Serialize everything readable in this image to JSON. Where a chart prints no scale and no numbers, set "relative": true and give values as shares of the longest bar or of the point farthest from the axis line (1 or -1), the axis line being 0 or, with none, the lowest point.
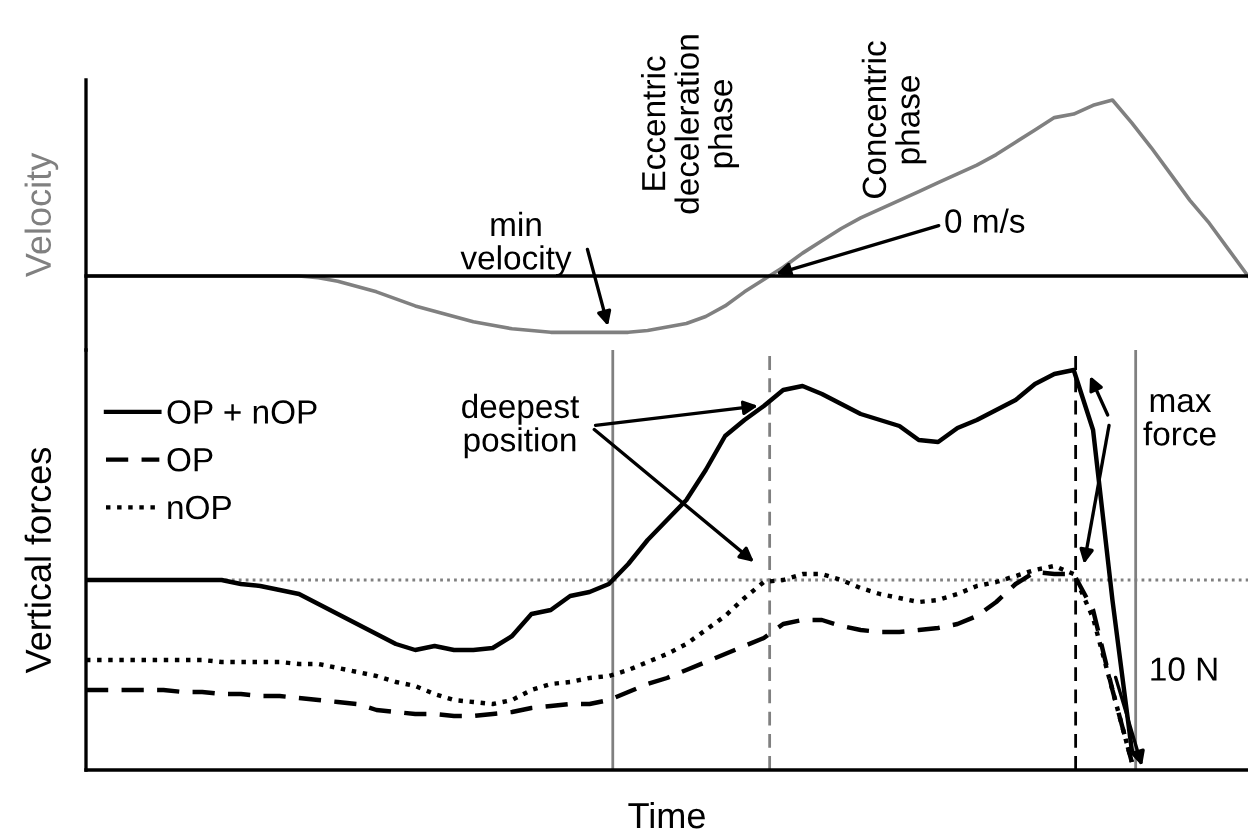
{
  "chart_data": [
    {
      "type": "line",
      "ylabel": "Velocity",
      "relative": true,
      "categories": [
        null,
        null,
        null,
        null,
        null,
        null,
        null,
        null,
        null,
        null,
        null,
        null,
        null,
        null,
        null,
        null,
        null,
        null,
        null,
        null,
        null,
        null,
        null,
        null,
        null,
        null,
        null,
        null,
        null,
        null,
        null,
        null,
        null,
        null,
        null,
        null,
        null,
        null,
        null,
        null,
        null,
        null,
        null,
        null,
        null,
        null,
        null,
        null,
        null,
        null,
        null,
        null,
        null,
        null,
        null,
        null,
        null,
        null,
        null,
        null,
        null
      ],
      "series": [
        {
          "color": "#808080",
          "line_style": "solid",
          "values": [
            0,
            0,
            0,
            0,
            0,
            0,
            0,
            0,
            0,
            0,
            0,
            0,
            -0.01,
            -0.03,
            -0.06,
            -0.09,
            -0.13,
            -0.17,
            -0.2,
            -0.23,
            -0.26,
            -0.28,
            -0.3,
            -0.31,
            -0.32,
            -0.32,
            -0.32,
            -0.32,
            -0.32,
            -0.31,
            -0.29,
            -0.27,
            -0.23,
            -0.17,
            -0.09,
            -0.02,
            0.05,
            0.13,
            0.2,
            0.27,
            0.33,
            0.38,
            0.43,
            0.48,
            0.53,
            0.58,
            0.63,
            0.69,
            0.76,
            0.83,
            0.9,
            0.92,
            0.97,
            1.0,
            0.87,
            0.73,
            0.58,
            0.43,
            0.3,
            0.15,
            0
          ]
        }
      ],
      "annotations": [
        "Eccentric\ndeceleration\nphase",
        "Concentric\nphase",
        "min\nvelocity",
        "0 m/s"
      ]
    },
    {
      "type": "line",
      "xlabel": "Time",
      "ylabel": "Vertical forces",
      "relative": true,
      "legend": "top left",
      "categories": [
        null,
        null,
        null,
        null,
        null,
        null,
        null,
        null,
        null,
        null,
        null,
        null,
        null,
        null,
        null,
        null,
        null,
        null,
        null,
        null,
        null,
        null,
        null,
        null,
        null,
        null,
        null,
        null,
        null,
        null,
        null,
        null,
        null,
        null,
        null,
        null,
        null,
        null,
        null,
        null,
        null,
        null,
        null,
        null,
        null,
        null,
        null,
        null,
        null,
        null,
        null,
        null,
        null,
        null,
        null,
        null,
        null,
        null,
        null,
        null,
        null
      ],
      "series": [
        {
          "name": "OP + nOP",
          "color": "#000000",
          "line_style": "solid",
          "values": [
            0.475,
            0.475,
            0.475,
            0.475,
            0.475,
            0.475,
            0.475,
            0.475,
            0.465,
            0.46,
            0.45,
            0.44,
            0.415,
            0.39,
            0.365,
            0.34,
            0.315,
            0.3,
            0.31,
            0.3,
            0.3,
            0.305,
            0.335,
            0.39,
            0.4,
            0.435,
            0.445,
            0.465,
            0.515,
            0.575,
            0.625,
            0.675,
            0.75,
            0.835,
            0.875,
            0.91,
            0.95,
            0.96,
            0.94,
            0.915,
            0.89,
            0.875,
            0.86,
            0.825,
            0.82,
            0.855,
            0.875,
            0.9,
            0.925,
            0.965,
            0.99,
            1.0,
            0.85,
            0.425,
            0.05,
            null,
            null,
            null,
            null,
            null,
            null
          ]
        },
        {
          "name": "OP",
          "color": "#000000",
          "line_style": "dashed",
          "values": [
            0.2,
            0.2,
            0.2,
            0.2,
            0.2,
            0.195,
            0.195,
            0.19,
            0.19,
            0.185,
            0.185,
            0.18,
            0.175,
            0.17,
            0.165,
            0.15,
            0.145,
            0.14,
            0.14,
            0.135,
            0.135,
            0.14,
            0.145,
            0.155,
            0.16,
            0.165,
            0.165,
            0.175,
            0.195,
            0.215,
            0.23,
            0.25,
            0.27,
            0.29,
            0.31,
            0.33,
            0.365,
            0.375,
            0.375,
            0.36,
            0.35,
            0.345,
            0.345,
            0.35,
            0.355,
            0.365,
            0.385,
            0.42,
            0.465,
            0.495,
            0.49,
            0.49,
            0.4,
            0.2,
            0.02,
            null,
            null,
            null,
            null,
            null,
            null
          ]
        },
        {
          "name": "nOP",
          "color": "#000000",
          "line_style": "dotted",
          "values": [
            0.275,
            0.275,
            0.275,
            0.275,
            0.275,
            0.275,
            0.275,
            0.27,
            0.27,
            0.27,
            0.27,
            0.265,
            0.265,
            0.255,
            0.245,
            0.235,
            0.22,
            0.21,
            0.19,
            0.175,
            0.17,
            0.165,
            0.175,
            0.2,
            0.215,
            0.22,
            0.23,
            0.235,
            0.25,
            0.27,
            0.29,
            0.315,
            0.35,
            0.385,
            0.43,
            0.47,
            0.475,
            0.49,
            0.49,
            0.475,
            0.455,
            0.44,
            0.43,
            0.42,
            0.425,
            0.44,
            0.46,
            0.47,
            0.485,
            0.5,
            0.51,
            0.49,
            0.38,
            0.2,
            0.02,
            null,
            null,
            null,
            null,
            null,
            null
          ]
        }
      ],
      "ref_lines": [
        {
          "axis": "y",
          "value": 0.475,
          "color": "#808080",
          "line_style": "dotted"
        }
      ],
      "annotations": [
        "deepest\nposition",
        "max\nforce",
        "10 N"
      ]
    }
  ]
}
